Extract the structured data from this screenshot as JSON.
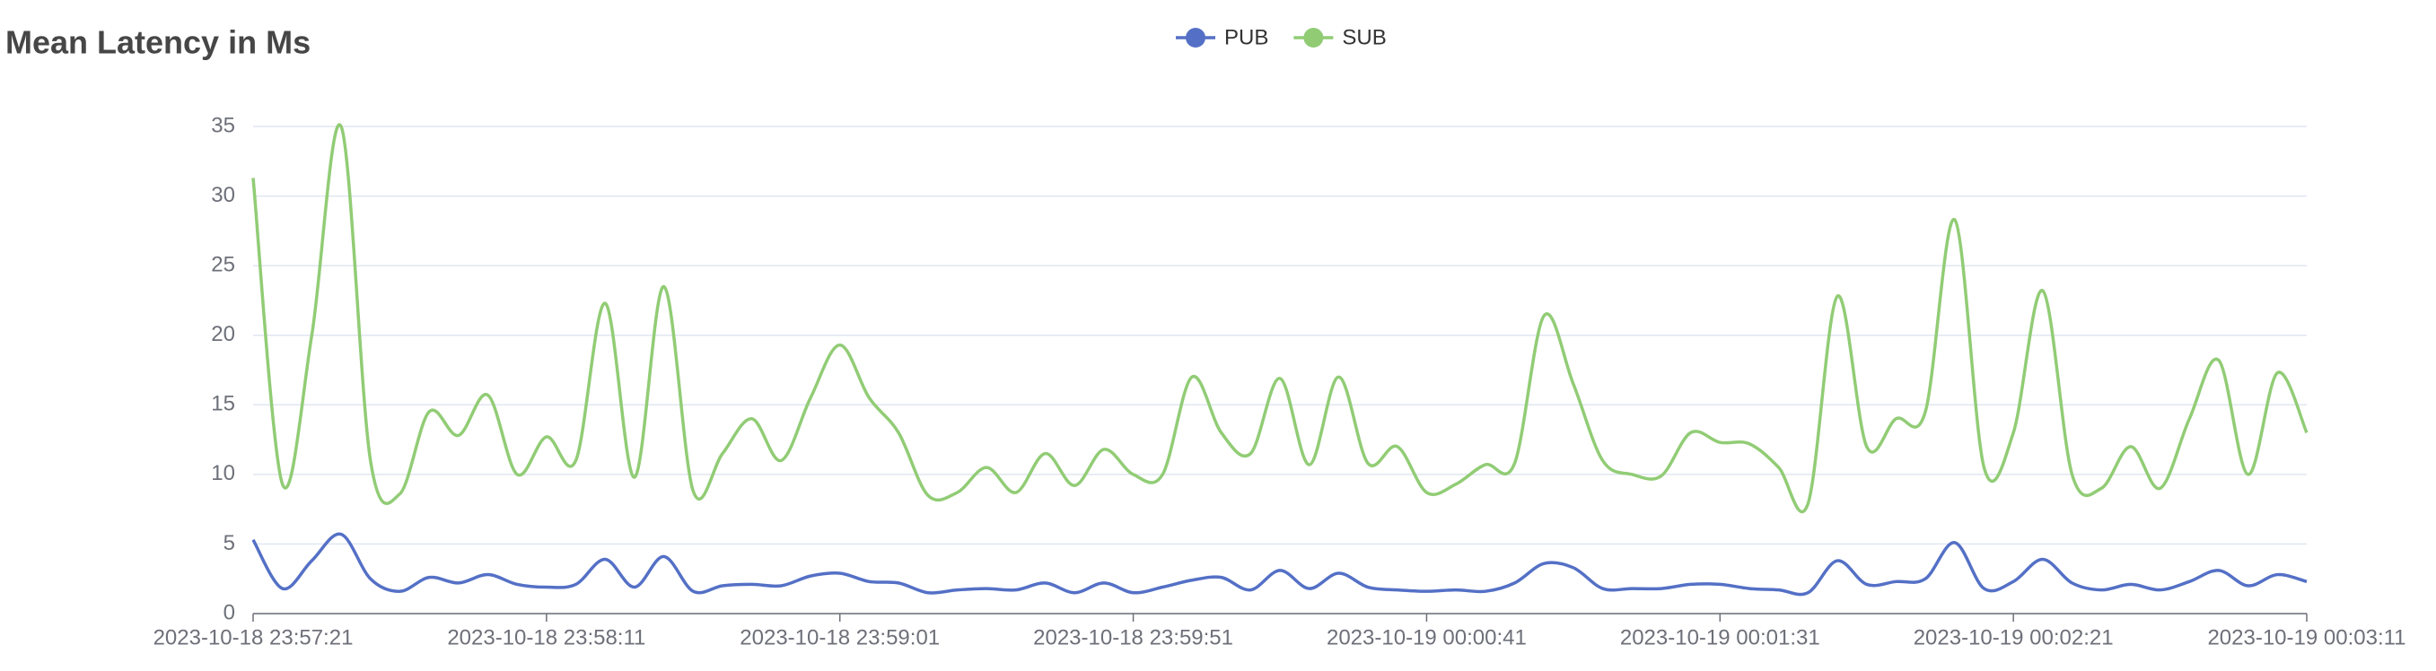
{
  "chart_data": {
    "type": "line",
    "title": "Mean Latency in Ms",
    "categories": [
      "2023-10-18 23:57:21",
      null,
      null,
      null,
      null,
      null,
      null,
      null,
      null,
      null,
      "2023-10-18 23:58:11",
      null,
      null,
      null,
      null,
      null,
      null,
      null,
      null,
      null,
      "2023-10-18 23:59:01",
      null,
      null,
      null,
      null,
      null,
      null,
      null,
      null,
      null,
      "2023-10-18 23:59:51",
      null,
      null,
      null,
      null,
      null,
      null,
      null,
      null,
      null,
      "2023-10-19 00:00:41",
      null,
      null,
      null,
      null,
      null,
      null,
      null,
      null,
      null,
      "2023-10-19 00:01:31",
      null,
      null,
      null,
      null,
      null,
      null,
      null,
      null,
      null,
      "2023-10-19 00:02:21",
      null,
      null,
      null,
      null,
      null,
      null,
      null,
      null,
      null,
      "2023-10-19 00:03:11"
    ],
    "series": [
      {
        "name": "PUB",
        "color": "#5470c6",
        "values": [
          5.3,
          1.8,
          3.8,
          5.7,
          2.5,
          1.6,
          2.6,
          2.2,
          2.8,
          2.1,
          1.9,
          2.1,
          3.9,
          1.9,
          4.1,
          1.6,
          2,
          2.1,
          2,
          2.7,
          2.9,
          2.3,
          2.2,
          1.5,
          1.7,
          1.8,
          1.7,
          2.2,
          1.5,
          2.2,
          1.5,
          1.9,
          2.4,
          2.6,
          1.7,
          3.1,
          1.8,
          2.9,
          1.9,
          1.7,
          1.6,
          1.7,
          1.6,
          2.2,
          3.6,
          3.3,
          1.8,
          1.8,
          1.8,
          2.1,
          2.1,
          1.8,
          1.7,
          1.5,
          3.8,
          2.1,
          2.3,
          2.5,
          5.1,
          1.8,
          2.3,
          3.9,
          2.2,
          1.7,
          2.1,
          1.7,
          2.3,
          3.1,
          2,
          2.8,
          2.3
        ]
      },
      {
        "name": "SUB",
        "color": "#91cc75",
        "values": [
          31.3,
          9.3,
          20,
          35,
          11,
          8.6,
          14.5,
          12.8,
          15.7,
          10,
          12.7,
          11,
          22.3,
          9.8,
          23.5,
          8.8,
          11.5,
          14,
          11,
          15.5,
          19.3,
          15.5,
          13,
          8.5,
          8.7,
          10.5,
          8.7,
          11.5,
          9.2,
          11.8,
          10,
          10,
          17,
          13,
          11.5,
          16.9,
          10.7,
          17,
          10.8,
          12,
          8.7,
          9.3,
          10.7,
          10.8,
          21.4,
          16.5,
          11,
          10,
          9.9,
          13,
          12.3,
          12.2,
          10.5,
          7.9,
          22.8,
          12,
          14,
          14.5,
          28.3,
          10.5,
          13,
          23.2,
          10,
          9,
          12,
          9,
          14,
          18.2,
          10,
          17.3,
          13
        ]
      }
    ],
    "ylim": [
      0,
      35
    ],
    "yticks": [
      0,
      5,
      10,
      15,
      20,
      25,
      30,
      35
    ],
    "grid": true,
    "smooth": true,
    "legend": "top"
  }
}
